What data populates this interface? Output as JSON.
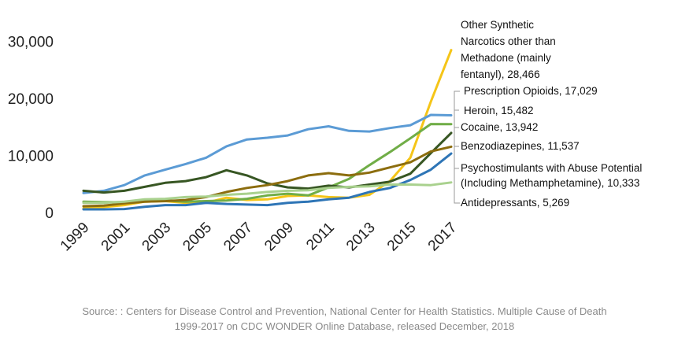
{
  "chart_data": {
    "type": "line",
    "x": [
      "1999",
      "2000",
      "2001",
      "2002",
      "2003",
      "2004",
      "2005",
      "2006",
      "2007",
      "2008",
      "2009",
      "2010",
      "2011",
      "2012",
      "2013",
      "2014",
      "2015",
      "2016",
      "2017"
    ],
    "xticks": [
      "1999",
      "2001",
      "2003",
      "2005",
      "2007",
      "2009",
      "2011",
      "2013",
      "2015",
      "2017"
    ],
    "yticks": [
      "0",
      "10,000",
      "20,000",
      "30,000"
    ],
    "ylim": [
      0,
      32000
    ],
    "grid": false,
    "legend": "end-of-line labels",
    "series": [
      {
        "name": "Other Synthetic Narcotics other than Methadone (mainly fentanyl), 28,466",
        "label_lines": [
          "Other Synthetic",
          "Narcotics other than",
          "Methadone (mainly",
          "fentanyl), 28,466"
        ],
        "color": "#f5c518",
        "values": [
          730,
          960,
          1300,
          1900,
          2000,
          1700,
          1700,
          2600,
          2200,
          2300,
          2900,
          3000,
          2700,
          2600,
          3100,
          5500,
          9600,
          19400,
          28466
        ]
      },
      {
        "name": "Prescription Opioids, 17,029",
        "label_lines": [
          "Prescription Opioids, 17,029"
        ],
        "color": "#5b9bd5",
        "values": [
          3400,
          3800,
          4800,
          6500,
          7500,
          8500,
          9600,
          11600,
          12800,
          13100,
          13500,
          14600,
          15100,
          14300,
          14200,
          14800,
          15300,
          17100,
          17029
        ]
      },
      {
        "name": "Heroin, 15,482",
        "label_lines": [
          "Heroin, 15,482"
        ],
        "color": "#70ad47",
        "values": [
          1900,
          1800,
          1800,
          2100,
          2100,
          1900,
          2000,
          2100,
          2400,
          3000,
          3300,
          3000,
          4400,
          5900,
          8300,
          10600,
          13000,
          15500,
          15482
        ]
      },
      {
        "name": "Cocaine, 13,942",
        "label_lines": [
          "Cocaine, 13,942"
        ],
        "color": "#375623",
        "values": [
          3800,
          3500,
          3800,
          4500,
          5200,
          5500,
          6200,
          7400,
          6500,
          5100,
          4400,
          4200,
          4700,
          4400,
          4900,
          5400,
          6800,
          10400,
          13942
        ]
      },
      {
        "name": "Benzodiazepines, 11,537",
        "label_lines": [
          "Benzodiazepines, 11,537"
        ],
        "color": "#8c6d0e",
        "values": [
          1100,
          1200,
          1600,
          1900,
          2000,
          2200,
          2700,
          3600,
          4300,
          4800,
          5500,
          6500,
          6900,
          6500,
          7000,
          7900,
          8800,
          10700,
          11537
        ]
      },
      {
        "name": "Psychostimulants with Abuse Potential (Including Methamphetamine), 10,333",
        "label_lines": [
          "Psychostimulants with Abuse Potential",
          "(Including Methamphetamine), 10,333"
        ],
        "color": "#2e75b6",
        "values": [
          550,
          550,
          600,
          1000,
          1300,
          1300,
          1700,
          1500,
          1400,
          1300,
          1700,
          1900,
          2300,
          2600,
          3600,
          4300,
          5700,
          7500,
          10333
        ]
      },
      {
        "name": "Antidepressants, 5,269",
        "label_lines": [
          "Antidepressants, 5,269"
        ],
        "color": "#a9d18e",
        "values": [
          1700,
          1700,
          1900,
          2300,
          2400,
          2700,
          2800,
          3100,
          3300,
          3600,
          3800,
          3900,
          4300,
          4500,
          4600,
          4900,
          4900,
          4800,
          5269
        ]
      }
    ]
  },
  "source": {
    "line1": "Source: : Centers for Disease Control and Prevention, National Center for Health Statistics. Multiple Cause of Death",
    "line2": "1999-2017 on CDC WONDER Online Database, released December, 2018"
  }
}
